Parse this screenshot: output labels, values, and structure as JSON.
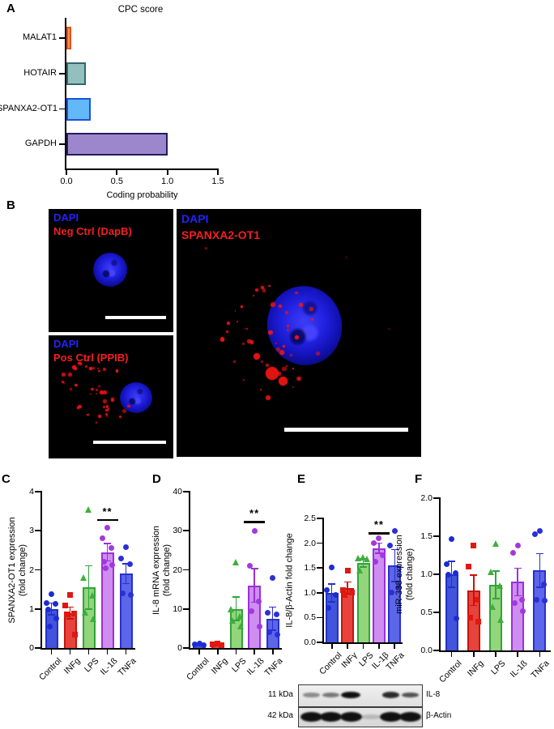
{
  "panels": {
    "a": "A",
    "b": "B",
    "c": "C",
    "d": "D",
    "e": "E",
    "f": "F"
  },
  "panel_b": {
    "images": [
      {
        "line1": "DAPI",
        "line2": "Neg Ctrl (DapB)"
      },
      {
        "line1": "DAPI",
        "line2": "Pos Ctrl (PPIB)"
      },
      {
        "line1": "DAPI",
        "line2": "SPANXA2-OT1"
      }
    ]
  },
  "colors": {
    "dapi_label": "#2222fa",
    "probe_label": "#f51f1f",
    "groups": [
      {
        "name": "Control",
        "fill": "#4254DB",
        "stroke": "#2230C8",
        "point": "#1E2BD4",
        "marker": "circle"
      },
      {
        "name": "INFg",
        "fill": "#E6433C",
        "stroke": "#C8120C",
        "point": "#E01810",
        "marker": "square"
      },
      {
        "name": "LPS",
        "fill": "#92D57A",
        "stroke": "#2FA43C",
        "point": "#3FAE3C",
        "marker": "triangle"
      },
      {
        "name": "IL-1ß",
        "fill": "#CE8EF0",
        "stroke": "#9C2FD9",
        "point": "#A238DF",
        "marker": "circle"
      },
      {
        "name": "TNFa",
        "fill": "#5B66E8",
        "stroke": "#2A2FD0",
        "point": "#2B2FD6",
        "marker": "circle"
      }
    ]
  },
  "chart_data": [
    {
      "id": "A",
      "type": "bar",
      "orientation": "horizontal",
      "title": "CPC score",
      "categories": [
        "MALAT1",
        "HOTAIR",
        "SPANXA2-OT1",
        "GAPDH"
      ],
      "values": [
        0.05,
        0.19,
        0.24,
        1.0
      ],
      "xlabel": "Coding probability",
      "xlim": [
        0,
        1.5
      ],
      "xticks": [
        "0.0",
        "0.5",
        "1.0",
        "1.5"
      ],
      "colors": [
        {
          "fill": "#F4915C",
          "stroke": "#E4511A"
        },
        {
          "fill": "#93C0BE",
          "stroke": "#33666D"
        },
        {
          "fill": "#63B9F8",
          "stroke": "#1D50D9"
        },
        {
          "fill": "#9D87CC",
          "stroke": "#241C60"
        }
      ]
    },
    {
      "id": "C",
      "type": "bar+scatter",
      "ylabel": "SPANXA2-OT1 expression",
      "ylabel2": "(fold change)",
      "categories": [
        "Control",
        "INFg",
        "LPS",
        "IL-1ß",
        "TNFa"
      ],
      "values": [
        1.0,
        0.9,
        1.55,
        2.45,
        1.9
      ],
      "sem": [
        0.15,
        0.15,
        0.55,
        0.22,
        0.25
      ],
      "points": [
        [
          1.37,
          1.15,
          1.12,
          0.98,
          0.75,
          0.55
        ],
        [
          1.35,
          1.08,
          0.88,
          0.85,
          0.35
        ],
        [
          3.55,
          1.8,
          1.35,
          0.92,
          0.75
        ],
        [
          3.08,
          2.8,
          2.55,
          2.2,
          2.12,
          2.05
        ],
        [
          2.57,
          2.3,
          2.15,
          1.4,
          1.35
        ]
      ],
      "ylim": [
        0,
        4
      ],
      "yticks": [
        "0",
        "1",
        "2",
        "3",
        "4"
      ],
      "sig": {
        "index": 3,
        "label": "**",
        "y": 3.3
      }
    },
    {
      "id": "D",
      "type": "bar+scatter",
      "ylabel": "IL-8 mRNA expression",
      "ylabel2": "(fold change)",
      "categories": [
        "Control",
        "INFg",
        "LPS",
        "IL-1ß",
        "TNFa"
      ],
      "values": [
        1.0,
        1.0,
        10.0,
        16.0,
        7.5
      ],
      "sem": [
        0.2,
        0.2,
        3.0,
        4.3,
        3.0
      ],
      "points": [
        [
          1.2,
          1.0,
          0.8
        ],
        [
          1.1,
          0.9,
          0.7
        ],
        [
          22,
          10,
          8,
          7,
          5.5
        ],
        [
          30,
          21,
          12,
          9.5,
          5.5
        ],
        [
          18,
          9,
          8.5,
          4,
          3.5
        ]
      ],
      "ylim": [
        0,
        40
      ],
      "yticks": [
        "0",
        "10",
        "20",
        "30",
        "40"
      ],
      "sig": {
        "index": 3,
        "label": "**",
        "y": 32.5
      }
    },
    {
      "id": "E",
      "type": "bar+scatter",
      "ylabel": "IL-8/β-Actin fold change",
      "ylabel2": "",
      "categories": [
        "Control",
        "INFγ",
        "LPS",
        "IL-1β",
        "TNFa"
      ],
      "values": [
        1.0,
        1.1,
        1.6,
        1.9,
        1.55
      ],
      "sem": [
        0.18,
        0.12,
        0.08,
        0.1,
        0.32
      ],
      "points": [
        [
          1.51,
          1.05,
          0.95,
          0.7
        ],
        [
          1.45,
          1.05,
          1.0,
          0.95
        ],
        [
          1.72,
          1.7,
          1.68,
          1.45
        ],
        [
          2.1,
          2.0,
          1.75,
          1.62
        ],
        [
          2.25,
          1.95,
          1.1,
          1.0
        ]
      ],
      "ylim": [
        0,
        2.5
      ],
      "yticks": [
        "0.0",
        "0.5",
        "1.0",
        "1.5",
        "2.0",
        "2.5"
      ],
      "sig": {
        "index": 3,
        "label": "**",
        "y": 2.22
      }
    },
    {
      "id": "F",
      "type": "bar+scatter",
      "ylabel": "miR-338 expression",
      "ylabel2": "(fold change)",
      "categories": [
        "Control",
        "INFg",
        "LPS",
        "IL-1ß",
        "TNFa"
      ],
      "values": [
        1.0,
        0.79,
        0.86,
        0.9,
        1.05
      ],
      "sem": [
        0.17,
        0.2,
        0.18,
        0.18,
        0.22
      ],
      "points": [
        [
          1.46,
          1.13,
          1.02,
          0.99,
          0.42
        ],
        [
          1.38,
          1.1,
          0.66,
          0.43,
          0.38
        ],
        [
          1.4,
          1.03,
          0.85,
          0.57,
          0.4
        ],
        [
          1.38,
          1.28,
          0.66,
          0.62,
          0.52
        ],
        [
          1.57,
          1.53,
          0.87,
          0.67,
          0.65
        ]
      ],
      "ylim": [
        0,
        2.0
      ],
      "yticks": [
        "0.0",
        "0.5",
        "1.0",
        "1.5",
        "2.0"
      ],
      "sig": null
    }
  ],
  "western_blot": {
    "rows": [
      {
        "kda": "11 kDa",
        "protein": "IL-8",
        "bands": [
          0.35,
          0.45,
          1,
          0,
          0.85,
          0.65
        ]
      },
      {
        "kda": "42 kDa",
        "protein": "β-Actin",
        "bands": [
          1,
          1,
          1,
          0.07,
          1,
          1
        ]
      }
    ]
  }
}
